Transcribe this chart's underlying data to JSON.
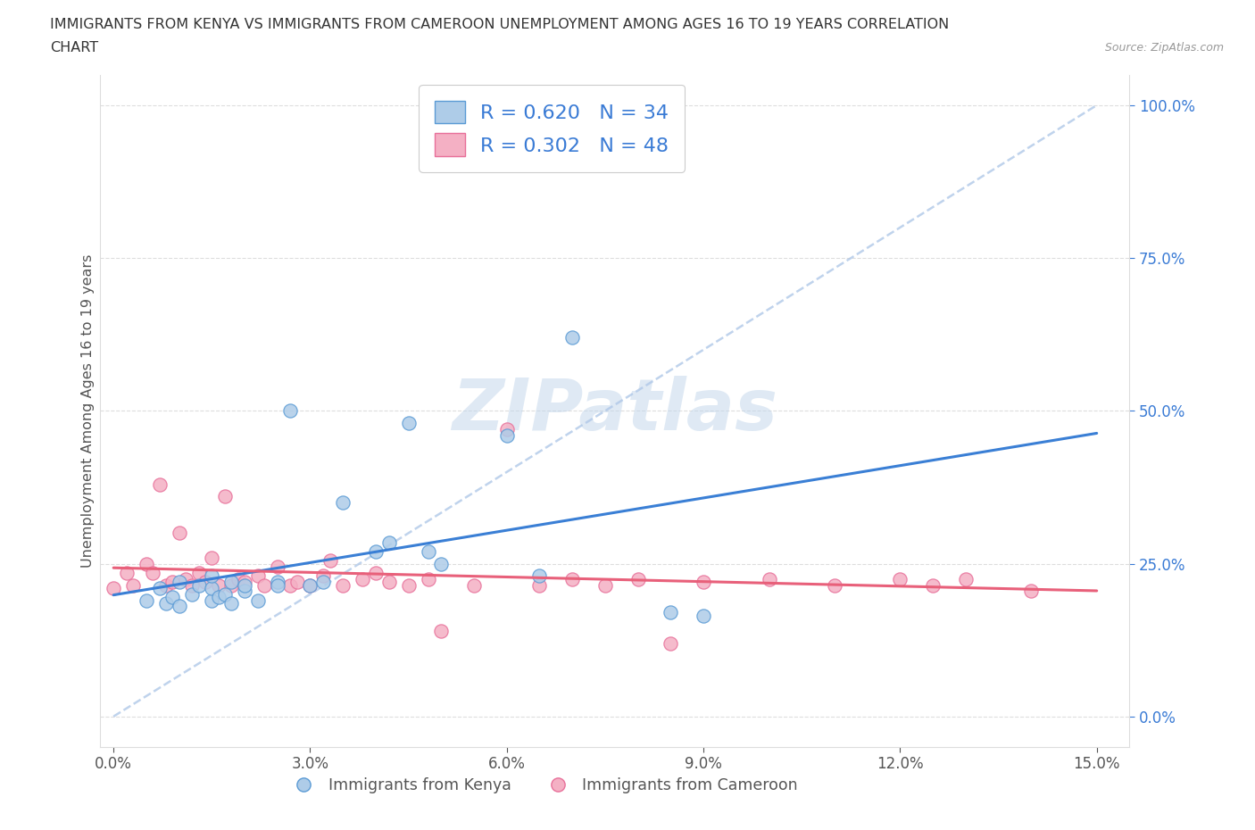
{
  "title_line1": "IMMIGRANTS FROM KENYA VS IMMIGRANTS FROM CAMEROON UNEMPLOYMENT AMONG AGES 16 TO 19 YEARS CORRELATION",
  "title_line2": "CHART",
  "source": "Source: ZipAtlas.com",
  "ylabel": "Unemployment Among Ages 16 to 19 years",
  "xlim": [
    -0.002,
    0.155
  ],
  "ylim": [
    -0.05,
    1.05
  ],
  "xticks": [
    0.0,
    0.03,
    0.06,
    0.09,
    0.12,
    0.15
  ],
  "xticklabels": [
    "0.0%",
    "3.0%",
    "6.0%",
    "9.0%",
    "12.0%",
    "15.0%"
  ],
  "ytick_values": [
    0.0,
    0.25,
    0.5,
    0.75,
    1.0
  ],
  "yticklabels_right": [
    "0.0%",
    "25.0%",
    "50.0%",
    "75.0%",
    "100.0%"
  ],
  "kenya_face_color": "#aecce8",
  "kenya_edge_color": "#5b9bd5",
  "cameroon_face_color": "#f4b0c4",
  "cameroon_edge_color": "#e8709a",
  "kenya_line_color": "#3a7fd5",
  "cameroon_line_color": "#e8607a",
  "diag_color": "#b0c8e8",
  "kenya_R": 0.62,
  "kenya_N": 34,
  "cameroon_R": 0.302,
  "cameroon_N": 48,
  "legend_label_kenya": "Immigrants from Kenya",
  "legend_label_cameroon": "Immigrants from Cameroon",
  "watermark": "ZIPatlas",
  "watermark_color": "#c5d8ec",
  "grid_color": "#dddddd",
  "background_color": "#ffffff",
  "stat_color": "#3a7bd5",
  "tick_color": "#3a7bd5",
  "kenya_x": [
    0.005,
    0.007,
    0.008,
    0.009,
    0.01,
    0.01,
    0.012,
    0.013,
    0.015,
    0.015,
    0.015,
    0.016,
    0.017,
    0.018,
    0.018,
    0.02,
    0.02,
    0.022,
    0.025,
    0.025,
    0.027,
    0.03,
    0.032,
    0.035,
    0.04,
    0.042,
    0.045,
    0.048,
    0.05,
    0.06,
    0.065,
    0.07,
    0.085,
    0.09
  ],
  "kenya_y": [
    0.19,
    0.21,
    0.185,
    0.195,
    0.22,
    0.18,
    0.2,
    0.215,
    0.19,
    0.21,
    0.23,
    0.195,
    0.2,
    0.22,
    0.185,
    0.205,
    0.215,
    0.19,
    0.22,
    0.215,
    0.5,
    0.215,
    0.22,
    0.35,
    0.27,
    0.285,
    0.48,
    0.27,
    0.25,
    0.46,
    0.23,
    0.62,
    0.17,
    0.165
  ],
  "cameroon_x": [
    0.0,
    0.002,
    0.003,
    0.005,
    0.006,
    0.007,
    0.008,
    0.009,
    0.01,
    0.011,
    0.012,
    0.013,
    0.014,
    0.015,
    0.016,
    0.017,
    0.018,
    0.019,
    0.02,
    0.022,
    0.023,
    0.025,
    0.027,
    0.028,
    0.03,
    0.032,
    0.033,
    0.035,
    0.038,
    0.04,
    0.042,
    0.045,
    0.048,
    0.05,
    0.055,
    0.06,
    0.065,
    0.07,
    0.075,
    0.08,
    0.085,
    0.09,
    0.1,
    0.11,
    0.12,
    0.125,
    0.13,
    0.14
  ],
  "cameroon_y": [
    0.21,
    0.235,
    0.215,
    0.25,
    0.235,
    0.38,
    0.215,
    0.22,
    0.3,
    0.225,
    0.215,
    0.235,
    0.22,
    0.26,
    0.215,
    0.36,
    0.215,
    0.225,
    0.22,
    0.23,
    0.215,
    0.245,
    0.215,
    0.22,
    0.215,
    0.23,
    0.255,
    0.215,
    0.225,
    0.235,
    0.22,
    0.215,
    0.225,
    0.14,
    0.215,
    0.47,
    0.215,
    0.225,
    0.215,
    0.225,
    0.12,
    0.22,
    0.225,
    0.215,
    0.225,
    0.215,
    0.225,
    0.205
  ]
}
